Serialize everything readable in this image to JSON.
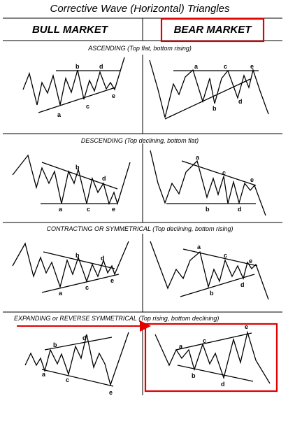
{
  "title": "Corrective Wave (Horizontal) Triangles",
  "columns": {
    "left": "BULL MARKET",
    "right": "BEAR MARKET"
  },
  "sections": [
    {
      "label": "ASCENDING (Top flat, bottom rising)"
    },
    {
      "label": "DESCENDING (Top declining, bottom flat)"
    },
    {
      "label": "CONTRACTING OR SYMMETRICAL (Top declining, bottom rising)"
    },
    {
      "label": "EXPANDING or REVERSE SYMMETRICAL (Top rising, bottom declining)"
    }
  ],
  "wave_labels": {
    "a": "a",
    "b": "b",
    "c": "c",
    "d": "d",
    "e": "e"
  },
  "annotation_colors": {
    "highlight": "#e00000"
  }
}
